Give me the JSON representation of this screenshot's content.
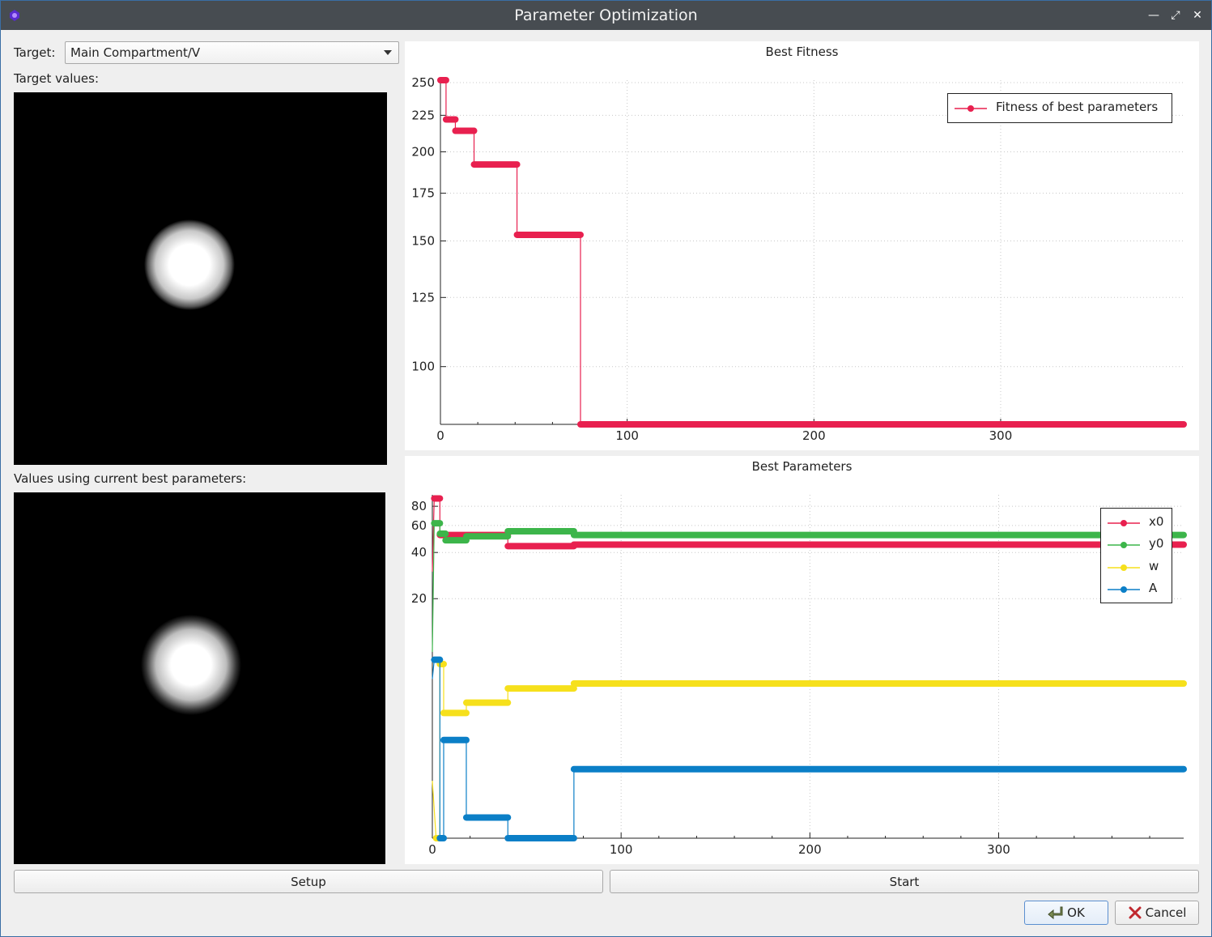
{
  "window": {
    "title": "Parameter Optimization"
  },
  "left": {
    "target_label": "Target:",
    "target_value": "Main Compartment/V",
    "target_values_label": "Target values:",
    "current_values_label": "Values using current best parameters:"
  },
  "fitness_chart": {
    "title": "Best Fitness",
    "chart_data": {
      "type": "line",
      "title": "Best Fitness",
      "xlim": [
        0,
        398
      ],
      "ylim": [
        83,
        252
      ],
      "y_scale": "log",
      "x_ticks": [
        "0",
        "100",
        "200",
        "300"
      ],
      "y_ticks": [
        "250",
        "225",
        "200",
        "175",
        "150",
        "125",
        "100"
      ],
      "legend": "top-right",
      "grid": true,
      "series": [
        {
          "name": "Fitness of best parameters",
          "color": "#e8204f",
          "steps": [
            [
              0,
              252
            ],
            [
              3,
              252
            ],
            [
              3,
              222
            ],
            [
              8,
              222
            ],
            [
              8,
              214
            ],
            [
              18,
              214
            ],
            [
              18,
              192
            ],
            [
              41,
              192
            ],
            [
              41,
              153
            ],
            [
              75,
              153
            ],
            [
              75,
              83
            ],
            [
              398,
              83
            ]
          ]
        }
      ]
    }
  },
  "params_chart": {
    "title": "Best Parameters",
    "chart_data": {
      "type": "line",
      "title": "Best Parameters",
      "xlim": [
        0,
        398
      ],
      "ylim": [
        0.55,
        95
      ],
      "y_scale": "log",
      "x_ticks": [
        "0",
        "100",
        "200",
        "300"
      ],
      "y_ticks": [
        "80",
        "60",
        "40",
        "20"
      ],
      "legend": "top-right",
      "grid": true,
      "series": [
        {
          "name": "x0",
          "color": "#e8204f",
          "steps": [
            [
              0,
              30
            ],
            [
              1,
              90
            ],
            [
              4,
              90
            ],
            [
              4,
              52
            ],
            [
              40,
              52
            ],
            [
              40,
              44
            ],
            [
              75,
              44
            ],
            [
              75,
              45
            ],
            [
              398,
              45
            ]
          ]
        },
        {
          "name": "y0",
          "color": "#3cb54a",
          "steps": [
            [
              0,
              9
            ],
            [
              1,
              62
            ],
            [
              4,
              62
            ],
            [
              4,
              53
            ],
            [
              7,
              53
            ],
            [
              7,
              48
            ],
            [
              18,
              48
            ],
            [
              18,
              51
            ],
            [
              40,
              51
            ],
            [
              40,
              55
            ],
            [
              75,
              55
            ],
            [
              75,
              52
            ],
            [
              398,
              52
            ]
          ]
        },
        {
          "name": "w",
          "color": "#f6e01c",
          "steps": [
            [
              0,
              1.3
            ],
            [
              2,
              0.55
            ],
            [
              4,
              0.55
            ],
            [
              4,
              7.5
            ],
            [
              6,
              7.5
            ],
            [
              6,
              3.6
            ],
            [
              18,
              3.6
            ],
            [
              18,
              4.2
            ],
            [
              40,
              4.2
            ],
            [
              40,
              5.2
            ],
            [
              75,
              5.2
            ],
            [
              75,
              5.6
            ],
            [
              398,
              5.6
            ]
          ]
        },
        {
          "name": "A",
          "color": "#0b7fc7",
          "steps": [
            [
              0,
              6
            ],
            [
              1,
              8
            ],
            [
              4,
              8
            ],
            [
              4,
              0.55
            ],
            [
              6,
              0.55
            ],
            [
              6,
              2.4
            ],
            [
              18,
              2.4
            ],
            [
              18,
              0.75
            ],
            [
              40,
              0.75
            ],
            [
              40,
              0.55
            ],
            [
              75,
              0.55
            ],
            [
              75,
              1.55
            ],
            [
              398,
              1.55
            ]
          ]
        }
      ]
    }
  },
  "buttons": {
    "setup": "Setup",
    "start": "Start",
    "ok": "OK",
    "cancel": "Cancel"
  }
}
